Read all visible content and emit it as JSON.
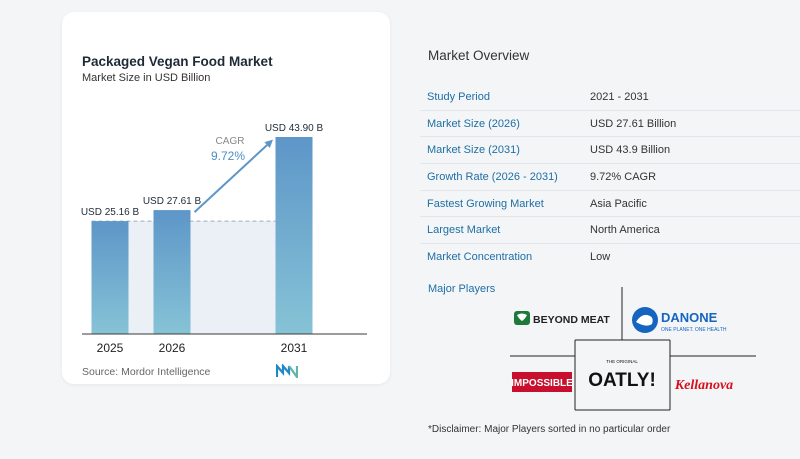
{
  "chart_card": {
    "title": "Packaged Vegan Food Market",
    "subtitle": "Market Size in USD Billion",
    "source": "Source:  Mordor Intelligence"
  },
  "chart_data": {
    "type": "bar",
    "categories": [
      "2025",
      "2026",
      "2031"
    ],
    "values": [
      25.16,
      27.61,
      43.9
    ],
    "data_labels": [
      "USD 25.16 B",
      "USD 27.61 B",
      "USD 43.90 B"
    ],
    "cagr_label": "CAGR",
    "cagr_value": "9.72%",
    "ylim": [
      0,
      43.9
    ],
    "colors": {
      "bar_top": "#5d96c8",
      "bar_bottom": "#86c3d6",
      "area": "#eaf0f6",
      "arrow": "#5d96c8",
      "cagr": "#4a90c4"
    }
  },
  "overview": {
    "title": "Market Overview",
    "rows": [
      {
        "key": "Study Period",
        "value": "2021 - 2031"
      },
      {
        "key": "Market Size (2026)",
        "value": "USD 27.61 Billion"
      },
      {
        "key": "Market Size (2031)",
        "value": "USD 43.9 Billion"
      },
      {
        "key": "Growth Rate (2026 - 2031)",
        "value": "9.72% CAGR"
      },
      {
        "key": "Fastest Growing Market",
        "value": "Asia Pacific"
      },
      {
        "key": "Largest Market",
        "value": "North America"
      },
      {
        "key": "Market Concentration",
        "value": "Low"
      }
    ],
    "players_title": "Major Players",
    "players": {
      "beyond_meat": "BEYOND MEAT",
      "danone": "DANONE",
      "danone_tagline": "ONE PLANET. ONE HEALTH",
      "impossible": "IMPOSSIBLE",
      "oatly_small": "THE ORIGINAL",
      "oatly": "OATLY!",
      "kellanova": "Kellanova"
    },
    "disclaimer": "*Disclaimer: Major Players sorted in no particular order"
  }
}
